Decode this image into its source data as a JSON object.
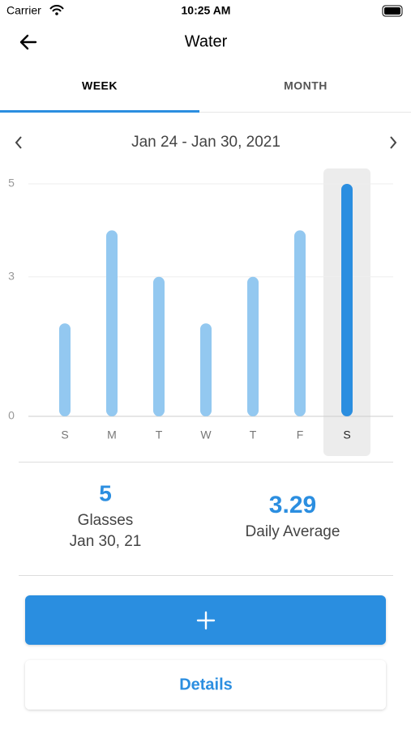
{
  "status_bar": {
    "carrier": "Carrier",
    "time": "10:25 AM"
  },
  "header": {
    "title": "Water"
  },
  "tabs": {
    "items": [
      "WEEK",
      "MONTH"
    ],
    "active": 0
  },
  "date_range": "Jan 24 - Jan 30, 2021",
  "chart_data": {
    "type": "bar",
    "categories": [
      "S",
      "M",
      "T",
      "W",
      "T",
      "F",
      "S"
    ],
    "values": [
      2,
      4,
      3,
      2,
      3,
      4,
      5
    ],
    "color": "#93c8f0",
    "selected_color": "#2b8ee0",
    "selected_index": 6,
    "ylim": [
      0,
      5
    ],
    "yticks": [
      0,
      3,
      5
    ],
    "grid": true
  },
  "summary": {
    "glasses_value": 5,
    "glasses_label": "Glasses",
    "glasses_date": "Jan 30, 21",
    "average_value": 3.29,
    "average_label": "Daily Average"
  },
  "buttons": {
    "details": "Details"
  }
}
